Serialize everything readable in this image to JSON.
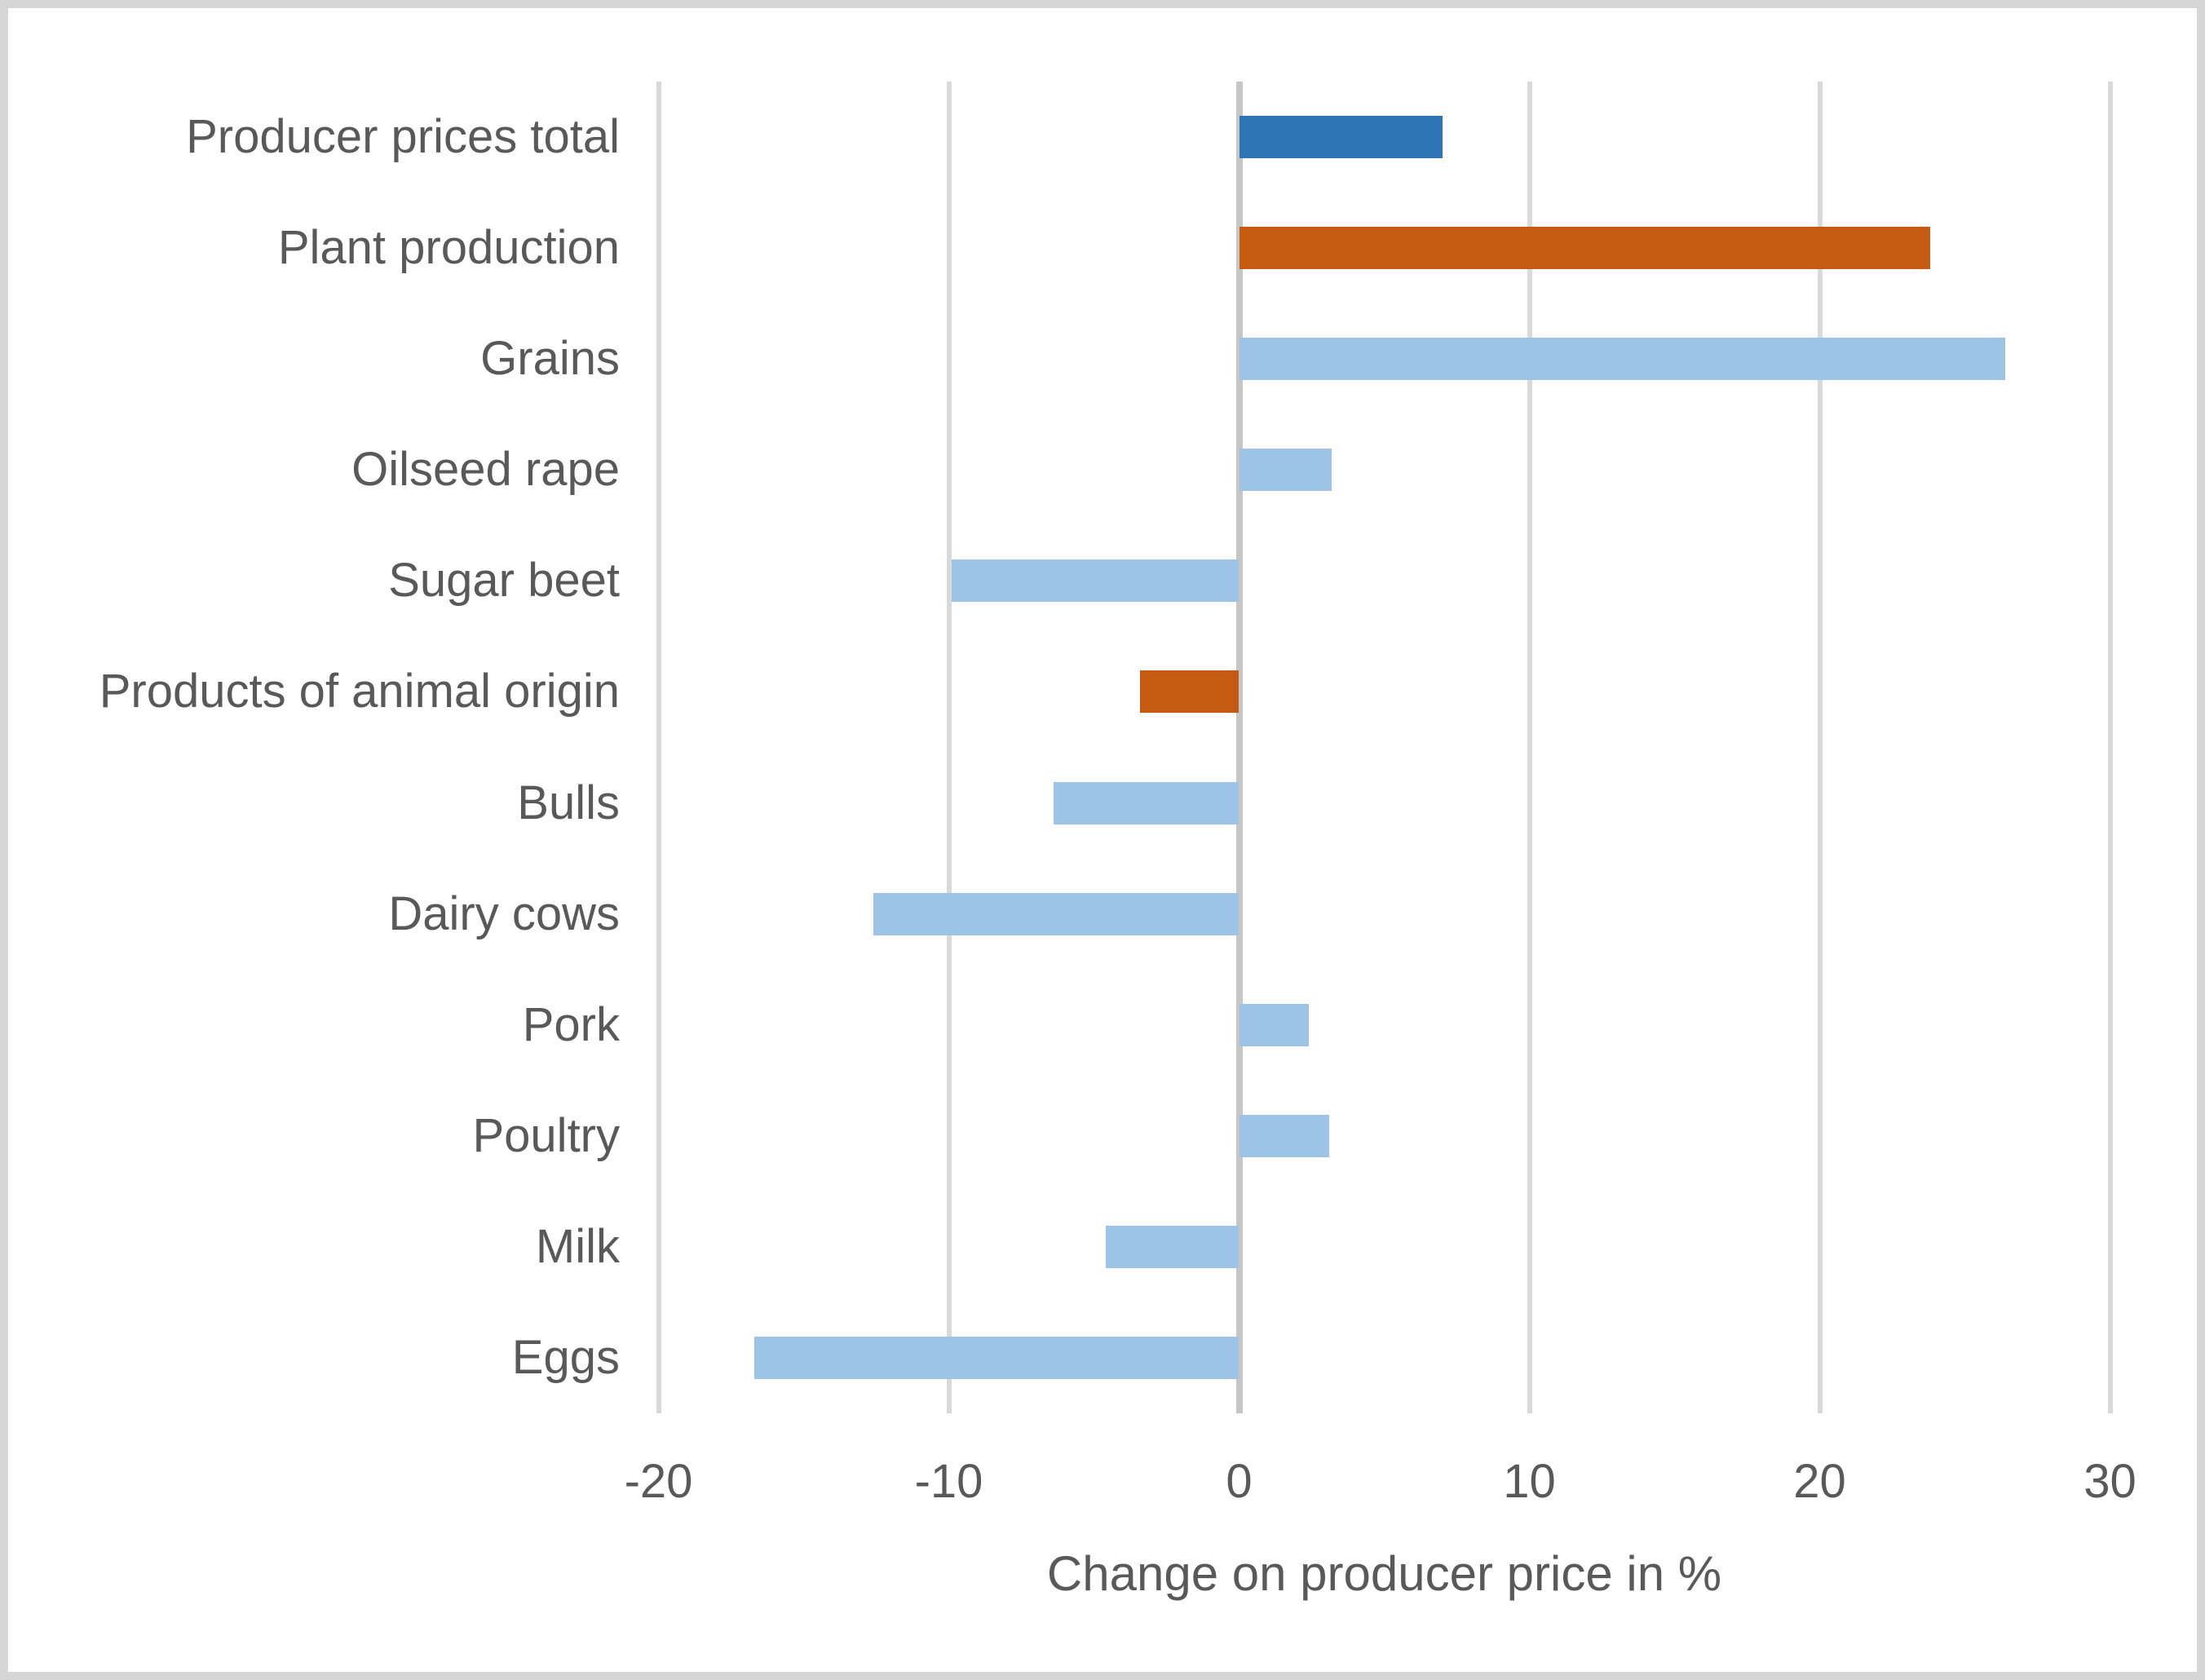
{
  "chart_data": {
    "type": "bar",
    "orientation": "horizontal",
    "title": "",
    "xlabel": "Change on producer price in %",
    "ylabel": "",
    "xlim": [
      -20,
      30
    ],
    "xticks": [
      -20,
      -10,
      0,
      10,
      20,
      30
    ],
    "grid": "vertical",
    "legend": "none",
    "categories": [
      "Producer prices total",
      "Plant production",
      "Grains",
      "Oilseed rape",
      "Sugar beet",
      "Products of animal origin",
      "Bulls",
      "Dairy cows",
      "Pork",
      "Poultry",
      "Milk",
      "Eggs"
    ],
    "values": [
      7,
      23.8,
      26.4,
      3.2,
      -9.9,
      -3.4,
      -6.4,
      -12.6,
      2.4,
      3.1,
      -4.6,
      -16.7
    ],
    "bar_colors": [
      "#2e74b5",
      "#c55a11",
      "#9dc3e6",
      "#9dc3e6",
      "#9dc3e6",
      "#c55a11",
      "#9dc3e6",
      "#9dc3e6",
      "#9dc3e6",
      "#9dc3e6",
      "#9dc3e6",
      "#9dc3e6"
    ],
    "colors": {
      "total_bar": "#2e74b5",
      "aggregate_bar": "#c55a11",
      "item_bar": "#9dc3e6",
      "gridline": "#d9d9d9",
      "zero_axis": "#c6c6c6",
      "text": "#595959",
      "page_border": "#d6d6d6",
      "background": "#ffffff"
    }
  }
}
